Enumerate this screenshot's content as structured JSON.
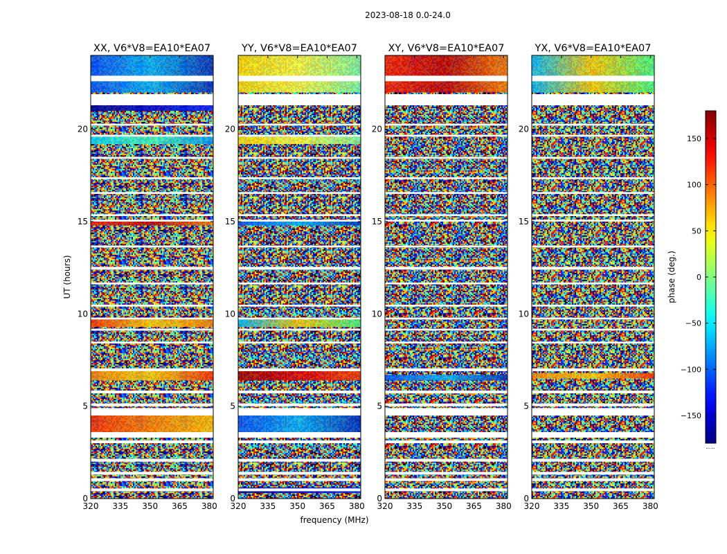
{
  "figure": {
    "suptitle": "2023-08-18 0.0-24.0",
    "xlabel": "frequency (MHz)",
    "ylabel": "UT (hours)",
    "colorbar_label": "phase (deg.)",
    "colorbar_footnote": "......"
  },
  "chart_data": {
    "type": "heatmap",
    "panels": [
      {
        "title": "XX, V6*V8=EA10*EA07",
        "coherent": [
          [
            22.0,
            24.0,
            "blue"
          ],
          [
            21.0,
            21.3,
            "navy"
          ],
          [
            19.2,
            19.6,
            "cyan"
          ],
          [
            14.8,
            15.0,
            "red"
          ],
          [
            9.3,
            9.7,
            "redyellow"
          ],
          [
            6.4,
            6.9,
            "orange"
          ],
          [
            3.6,
            4.5,
            "redorange"
          ]
        ]
      },
      {
        "title": "YY, V6*V8=EA10*EA07",
        "coherent": [
          [
            22.0,
            24.0,
            "yellow"
          ],
          [
            19.2,
            19.6,
            "yellow"
          ],
          [
            14.8,
            15.0,
            "blue"
          ],
          [
            9.3,
            9.7,
            "mixed"
          ],
          [
            6.4,
            6.9,
            "darkred"
          ],
          [
            3.6,
            4.5,
            "blue"
          ],
          [
            0.3,
            0.6,
            "navy"
          ]
        ]
      },
      {
        "title": "XY, V6*V8=EA10*EA07",
        "coherent": [
          [
            22.0,
            24.0,
            "red"
          ],
          [
            6.4,
            6.7,
            "blue"
          ]
        ]
      },
      {
        "title": "YX, V6*V8=EA10*EA07",
        "coherent": [
          [
            22.0,
            24.0,
            "mixed"
          ],
          [
            6.5,
            6.8,
            "orange"
          ]
        ]
      }
    ],
    "x_range": [
      320,
      382
    ],
    "x_ticks": [
      320,
      335,
      350,
      365,
      380
    ],
    "y_range": [
      0,
      24
    ],
    "y_ticks": [
      0,
      5,
      10,
      15,
      20
    ],
    "colorbar": {
      "range": [
        -180,
        180
      ],
      "ticks": [
        150,
        100,
        50,
        0,
        -50,
        -100,
        -150
      ],
      "tick_labels": [
        "150",
        "100",
        "50",
        "0",
        "−50",
        "−100",
        "−150"
      ],
      "colormap": "jet"
    },
    "gaps_hours": [
      [
        0.4,
        0.55
      ],
      [
        0.95,
        1.1
      ],
      [
        1.3,
        1.45
      ],
      [
        2.0,
        2.15
      ],
      [
        3.0,
        3.15
      ],
      [
        3.3,
        3.6
      ],
      [
        4.5,
        4.9
      ],
      [
        5.0,
        5.15
      ],
      [
        5.7,
        5.85
      ],
      [
        6.9,
        7.05
      ],
      [
        8.4,
        8.5
      ],
      [
        9.1,
        9.2
      ],
      [
        9.7,
        9.8
      ],
      [
        10.4,
        10.5
      ],
      [
        11.6,
        11.7
      ],
      [
        12.4,
        12.55
      ],
      [
        13.6,
        13.7
      ],
      [
        15.0,
        15.1
      ],
      [
        15.3,
        15.4
      ],
      [
        16.5,
        16.6
      ],
      [
        17.3,
        17.4
      ],
      [
        18.4,
        18.5
      ],
      [
        19.6,
        19.7
      ],
      [
        20.2,
        20.3
      ],
      [
        21.3,
        21.9
      ],
      [
        22.6,
        22.9
      ]
    ]
  },
  "colors": {
    "axis": "#000000",
    "gap": "#ffffff",
    "background": "#ffffff"
  }
}
